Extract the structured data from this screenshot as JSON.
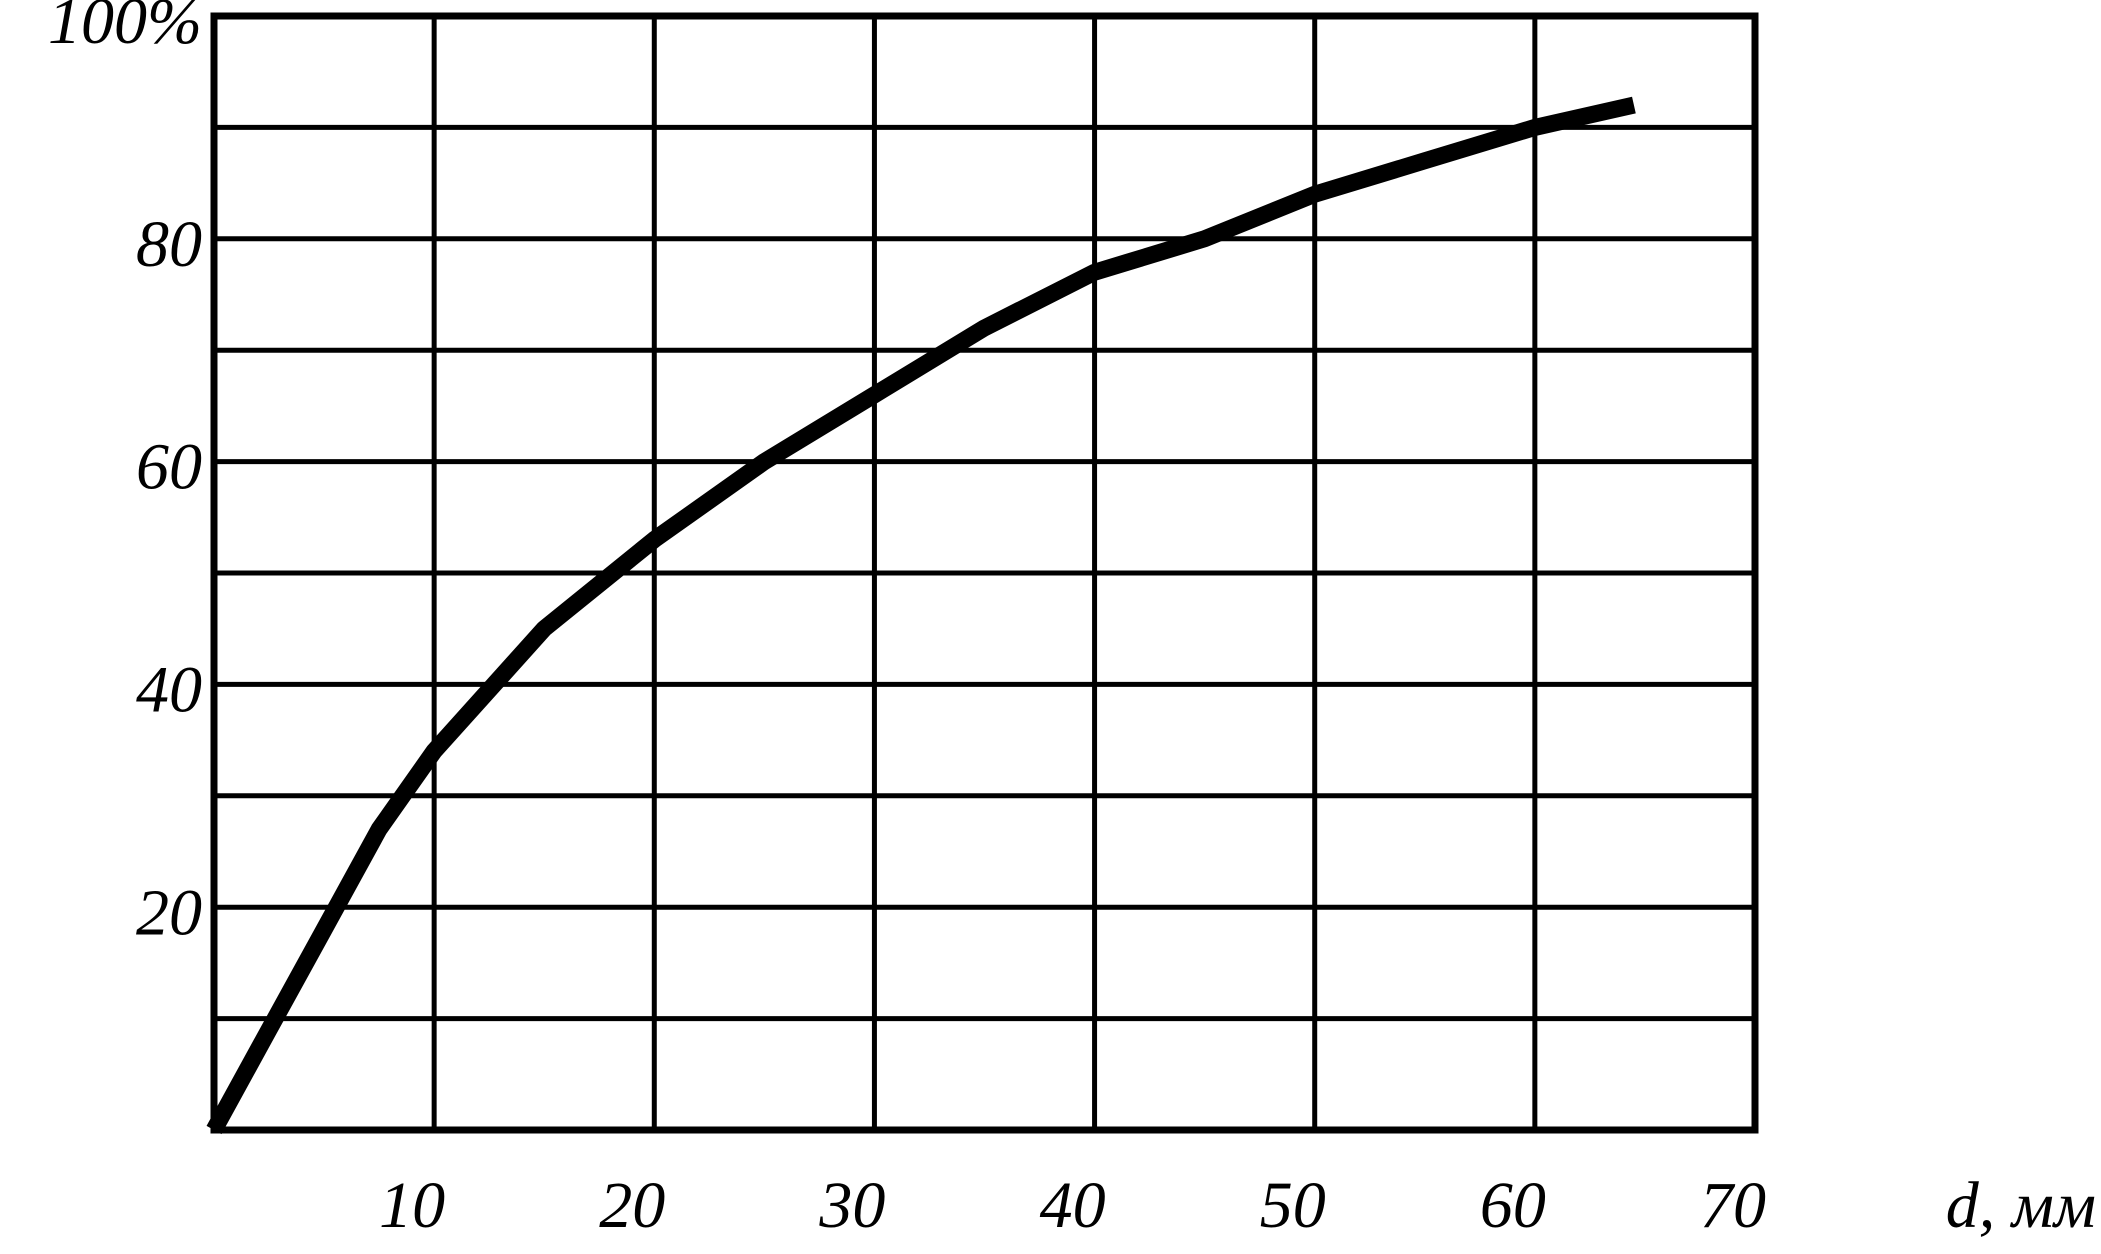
{
  "chart_data": {
    "type": "line",
    "xlabel": "d, мм",
    "x": [
      0,
      2.5,
      5,
      7.5,
      10,
      15,
      20,
      25,
      30,
      35,
      40,
      45,
      50,
      55,
      60,
      64.5
    ],
    "values": [
      0,
      9,
      18,
      27,
      34,
      45,
      53,
      60,
      66,
      72,
      77,
      80,
      84,
      87,
      90,
      92
    ],
    "color": "#000000",
    "xlim": [
      0,
      70
    ],
    "ylim": [
      0,
      100
    ],
    "xticks": [
      10,
      20,
      30,
      40,
      50,
      60,
      70
    ],
    "yticks": [
      20,
      40,
      60,
      80,
      {
        "value": 100,
        "label": "100%"
      }
    ],
    "yminor": [
      10,
      30,
      50,
      70,
      90
    ],
    "grid": true
  }
}
